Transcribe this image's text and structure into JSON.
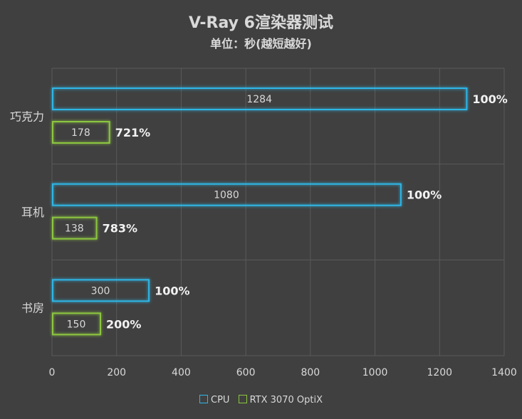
{
  "title": "V-Ray 6渲染器测试",
  "subtitle": "单位：秒(越短越好)",
  "colors": {
    "background": "#404040",
    "cpu": "#2fb6e6",
    "gpu": "#8cc63f",
    "grid": "#5a5a5a",
    "text": "#d9d9d9"
  },
  "chart_data": {
    "type": "bar",
    "orientation": "horizontal",
    "categories": [
      "巧克力",
      "耳机",
      "书房"
    ],
    "series": [
      {
        "name": "CPU",
        "values": [
          1284,
          1080,
          300
        ],
        "labels": [
          "100%",
          "100%",
          "100%"
        ]
      },
      {
        "name": "RTX 3070 OptiX",
        "values": [
          178,
          138,
          150
        ],
        "labels": [
          "721%",
          "783%",
          "200%"
        ]
      }
    ],
    "xlim": [
      0,
      1400
    ],
    "xticks": [
      0,
      200,
      400,
      600,
      800,
      1000,
      1200,
      1400
    ],
    "grid": true,
    "legend": "bottom"
  }
}
